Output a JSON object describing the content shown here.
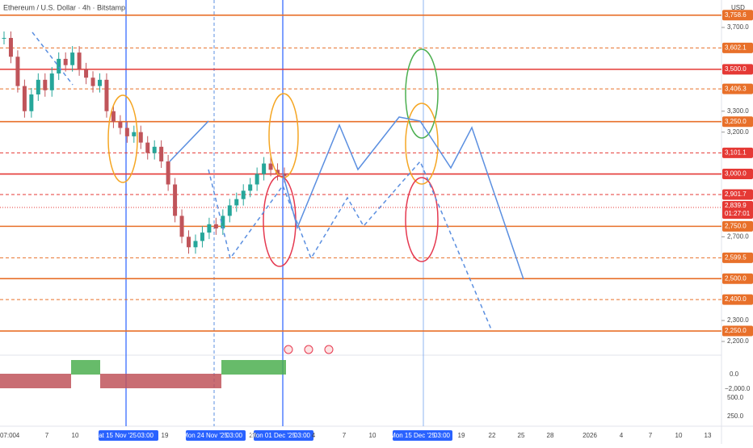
{
  "header": {
    "title": "Ethereum / U.S. Dollar · 4h · Bitstamp",
    "currency": "USD"
  },
  "price_axis": {
    "ylim": [
      2200,
      3700
    ],
    "ticks": [
      {
        "value": 3700,
        "label": "3,700.0"
      },
      {
        "value": 3300,
        "label": "3,300.0"
      },
      {
        "value": 3200,
        "label": "3,200.0"
      },
      {
        "value": 2700,
        "label": "2,700.0"
      },
      {
        "value": 2300,
        "label": "2,300.0"
      },
      {
        "value": 2200,
        "label": "2,200.0"
      }
    ]
  },
  "levels": [
    {
      "value": 3758.6,
      "label": "3,758.6",
      "color": "#e8702a",
      "style": "solid"
    },
    {
      "value": 3602.1,
      "label": "3,602.1",
      "color": "#e8702a",
      "style": "dashed"
    },
    {
      "value": 3500,
      "label": "3,500.0",
      "color": "#e53935",
      "style": "solid"
    },
    {
      "value": 3406.3,
      "label": "3,406.3",
      "color": "#e8702a",
      "style": "dashed"
    },
    {
      "value": 3250,
      "label": "3,250.0",
      "color": "#e8702a",
      "style": "solid"
    },
    {
      "value": 3101.1,
      "label": "3,101.1",
      "color": "#e53935",
      "style": "dashed"
    },
    {
      "value": 3000,
      "label": "3,000.0",
      "color": "#e53935",
      "style": "solid"
    },
    {
      "value": 2901.7,
      "label": "2,901.7",
      "color": "#e53935",
      "style": "dashed"
    },
    {
      "value": 2750,
      "label": "2,750.0",
      "color": "#e8702a",
      "style": "solid"
    },
    {
      "value": 2599.5,
      "label": "2,599.5",
      "color": "#e8702a",
      "style": "dashed"
    },
    {
      "value": 2500,
      "label": "2,500.0",
      "color": "#e8702a",
      "style": "solid"
    },
    {
      "value": 2400,
      "label": "2,400.0",
      "color": "#e8702a",
      "style": "dashed"
    },
    {
      "value": 2250,
      "label": "2,250.0",
      "color": "#e8702a",
      "style": "solid"
    }
  ],
  "last_price": {
    "value": 2839.9,
    "label": "2,839.9",
    "countdown": "01:27:01",
    "color": "#e53935"
  },
  "closes": [
    3650,
    3560,
    3420,
    3300,
    3380,
    3450,
    3400,
    3480,
    3550,
    3520,
    3580,
    3500,
    3460,
    3420,
    3450,
    3300,
    3250,
    3220,
    3180,
    3200,
    3150,
    3100,
    3130,
    3060,
    2950,
    2800,
    2700,
    2650,
    2680,
    2720,
    2760,
    2740,
    2800,
    2850,
    2880,
    2920,
    2950,
    3000,
    3050,
    3020,
    3000,
    2990
  ],
  "indicator_labels": [
    "0.0",
    "−2,000.0",
    "500.0",
    "250.0"
  ],
  "time_axis": [
    "07:00",
    "4",
    "7",
    "10",
    "Sat 15 Nov '25",
    "03:00",
    "19",
    "Mon 24 Nov '25",
    "03:00",
    "28",
    "Mon 01 Dec '25",
    "03:00",
    "4",
    "7",
    "10",
    "Mon 15 Dec '25",
    "03:00",
    "19",
    "22",
    "25",
    "28",
    "2026",
    "4",
    "7",
    "10",
    "13"
  ]
}
